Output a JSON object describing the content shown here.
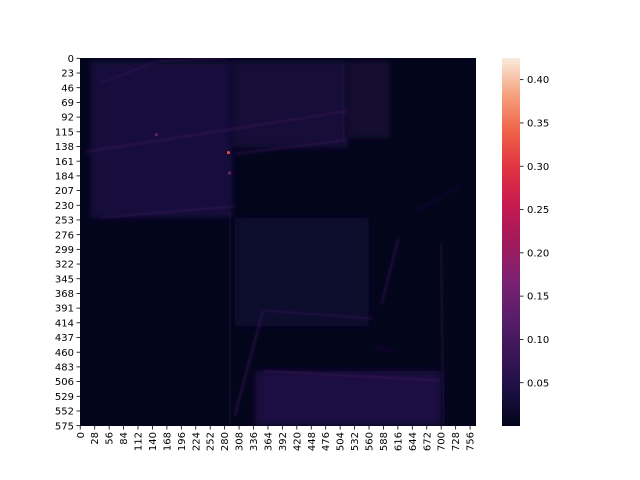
{
  "chart_data": {
    "type": "heatmap",
    "title": "",
    "xlabel": "",
    "ylabel": "",
    "image_size": {
      "rows": 576,
      "cols": 768
    },
    "x_ticks": [
      "0",
      "28",
      "56",
      "84",
      "112",
      "140",
      "168",
      "196",
      "224",
      "252",
      "280",
      "308",
      "336",
      "364",
      "392",
      "420",
      "448",
      "476",
      "504",
      "532",
      "560",
      "588",
      "616",
      "644",
      "672",
      "700",
      "728",
      "756"
    ],
    "y_ticks": [
      "0",
      "23",
      "46",
      "69",
      "92",
      "115",
      "138",
      "161",
      "184",
      "207",
      "230",
      "253",
      "276",
      "299",
      "322",
      "345",
      "368",
      "391",
      "414",
      "437",
      "460",
      "483",
      "506",
      "529",
      "552",
      "575"
    ],
    "colorbar": {
      "min": 0.0,
      "max": 0.425,
      "ticks": [
        "0.05",
        "0.10",
        "0.15",
        "0.20",
        "0.25",
        "0.30",
        "0.35",
        "0.40"
      ],
      "tick_values": [
        0.05,
        0.1,
        0.15,
        0.2,
        0.25,
        0.3,
        0.35,
        0.4
      ],
      "colormap": "rocket"
    },
    "background_value": 0.01,
    "grid": false,
    "features": [
      {
        "shape": "box",
        "x0": 20,
        "x1": 296,
        "y0": 5,
        "y1": 250,
        "value": 0.035
      },
      {
        "shape": "box",
        "x0": 296,
        "x1": 520,
        "y0": 5,
        "y1": 140,
        "value": 0.03
      },
      {
        "shape": "box",
        "x0": 520,
        "x1": 600,
        "y0": 5,
        "y1": 125,
        "value": 0.025
      },
      {
        "shape": "box",
        "x0": 340,
        "x1": 700,
        "y0": 490,
        "y1": 575,
        "value": 0.04
      },
      {
        "shape": "box",
        "x0": 300,
        "x1": 560,
        "y0": 250,
        "y1": 420,
        "value": 0.02
      },
      {
        "shape": "line",
        "x0": 10,
        "y0": 147,
        "x1": 520,
        "y1": 83,
        "value": 0.08
      },
      {
        "shape": "line",
        "x0": 300,
        "y0": 150,
        "x1": 520,
        "y1": 128,
        "value": 0.07
      },
      {
        "shape": "line",
        "x0": 38,
        "y0": 40,
        "x1": 150,
        "y1": 5,
        "value": 0.07
      },
      {
        "shape": "line",
        "x0": 150,
        "y0": 5,
        "x1": 290,
        "y1": 0,
        "value": 0.06
      },
      {
        "shape": "line",
        "x0": 38,
        "y0": 40,
        "x1": 38,
        "y1": 250,
        "value": 0.06
      },
      {
        "shape": "line",
        "x0": 38,
        "y0": 250,
        "x1": 300,
        "y1": 232,
        "value": 0.07
      },
      {
        "shape": "line",
        "x0": 148,
        "y0": 15,
        "x1": 148,
        "y1": 235,
        "value": 0.09
      },
      {
        "shape": "line",
        "x0": 290,
        "y0": 0,
        "x1": 290,
        "y1": 235,
        "value": 0.1
      },
      {
        "shape": "line",
        "x0": 510,
        "y0": 10,
        "x1": 512,
        "y1": 130,
        "value": 0.06
      },
      {
        "shape": "line",
        "x0": 290,
        "y0": 240,
        "x1": 292,
        "y1": 575,
        "value": 0.06
      },
      {
        "shape": "line",
        "x0": 300,
        "y0": 560,
        "x1": 355,
        "y1": 395,
        "value": 0.08
      },
      {
        "shape": "line",
        "x0": 355,
        "y0": 395,
        "x1": 570,
        "y1": 408,
        "value": 0.06
      },
      {
        "shape": "line",
        "x0": 585,
        "y0": 385,
        "x1": 618,
        "y1": 280,
        "value": 0.07
      },
      {
        "shape": "line",
        "x0": 570,
        "y0": 450,
        "x1": 610,
        "y1": 460,
        "value": 0.05
      },
      {
        "shape": "line",
        "x0": 355,
        "y0": 490,
        "x1": 700,
        "y1": 505,
        "value": 0.08
      },
      {
        "shape": "line",
        "x0": 700,
        "y0": 290,
        "x1": 705,
        "y1": 575,
        "value": 0.06
      },
      {
        "shape": "line",
        "x0": 650,
        "y0": 240,
        "x1": 740,
        "y1": 200,
        "value": 0.04
      },
      {
        "shape": "point",
        "x": 288,
        "y": 148,
        "value": 0.32
      },
      {
        "shape": "point",
        "x": 290,
        "y": 180,
        "value": 0.15
      },
      {
        "shape": "point",
        "x": 148,
        "y": 120,
        "value": 0.14
      }
    ]
  }
}
